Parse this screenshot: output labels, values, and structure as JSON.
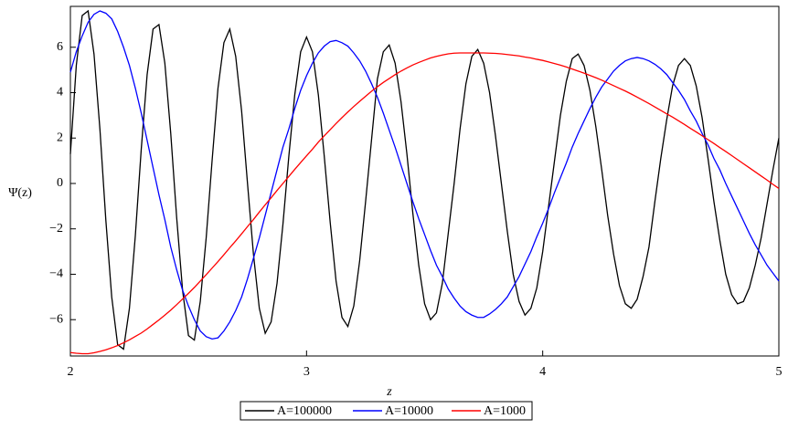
{
  "chart_data": {
    "type": "line",
    "xlabel": "z",
    "ylabel": "Ψ(z)",
    "x": [
      2,
      2.025,
      2.05,
      2.075,
      2.1,
      2.125,
      2.15,
      2.175,
      2.2,
      2.225,
      2.25,
      2.275,
      2.3,
      2.325,
      2.35,
      2.375,
      2.4,
      2.425,
      2.45,
      2.475,
      2.5,
      2.525,
      2.55,
      2.575,
      2.6,
      2.625,
      2.65,
      2.675,
      2.7,
      2.725,
      2.75,
      2.775,
      2.8,
      2.825,
      2.85,
      2.875,
      2.9,
      2.925,
      2.95,
      2.975,
      3,
      3.025,
      3.05,
      3.075,
      3.1,
      3.125,
      3.15,
      3.175,
      3.2,
      3.225,
      3.25,
      3.275,
      3.3,
      3.325,
      3.35,
      3.375,
      3.4,
      3.425,
      3.45,
      3.475,
      3.5,
      3.525,
      3.55,
      3.575,
      3.6,
      3.625,
      3.65,
      3.675,
      3.7,
      3.725,
      3.75,
      3.775,
      3.8,
      3.825,
      3.85,
      3.875,
      3.9,
      3.925,
      3.95,
      3.975,
      4,
      4.025,
      4.05,
      4.075,
      4.1,
      4.125,
      4.15,
      4.175,
      4.2,
      4.225,
      4.25,
      4.275,
      4.3,
      4.325,
      4.35,
      4.375,
      4.4,
      4.425,
      4.45,
      4.475,
      4.5,
      4.525,
      4.55,
      4.575,
      4.6,
      4.625,
      4.65,
      4.675,
      4.7,
      4.725,
      4.75,
      4.775,
      4.8,
      4.825,
      4.85,
      4.875,
      4.9,
      4.925,
      4.95,
      4.975,
      5
    ],
    "series": [
      {
        "name": "A=100000",
        "color": "#000000",
        "values": [
          1.3,
          5.2,
          7.4,
          7.6,
          5.7,
          2.4,
          -1.6,
          -5.0,
          -7.1,
          -7.3,
          -5.5,
          -2.3,
          1.5,
          4.8,
          6.8,
          7.0,
          5.3,
          2.2,
          -1.5,
          -4.7,
          -6.7,
          -6.9,
          -5.2,
          -2.4,
          1.0,
          4.2,
          6.2,
          6.8,
          5.6,
          3.2,
          0,
          -3.1,
          -5.5,
          -6.6,
          -6.1,
          -4.4,
          -1.8,
          1.2,
          3.9,
          5.8,
          6.45,
          5.8,
          3.9,
          1.2,
          -1.7,
          -4.3,
          -5.9,
          -6.3,
          -5.4,
          -3.4,
          -0.8,
          1.9,
          4.6,
          5.8,
          6.1,
          5.3,
          3.6,
          1.3,
          -1.3,
          -3.6,
          -5.3,
          -6.0,
          -5.7,
          -4.4,
          -2.2,
          0,
          2.4,
          4.4,
          5.6,
          5.9,
          5.3,
          4.0,
          2.1,
          0,
          -2.1,
          -4.0,
          -5.2,
          -5.8,
          -5.5,
          -4.6,
          -3.0,
          -1.0,
          1.0,
          3.0,
          4.5,
          5.5,
          5.7,
          5.2,
          4.1,
          2.5,
          0.6,
          -1.4,
          -3.1,
          -4.5,
          -5.3,
          -5.5,
          -5.1,
          -4.1,
          -2.8,
          -0.8,
          1.1,
          2.8,
          4.3,
          5.2,
          5.5,
          5.2,
          4.3,
          2.9,
          1.1,
          -0.8,
          -2.5,
          -4.0,
          -4.9,
          -5.3,
          -5.2,
          -4.6,
          -3.6,
          -2.4,
          -0.9,
          0.6,
          2.0
        ]
      },
      {
        "name": "A=10000",
        "color": "#0000ff",
        "values": [
          4.9,
          5.8,
          6.5,
          7.1,
          7.45,
          7.6,
          7.5,
          7.25,
          6.7,
          6.0,
          5.2,
          4.2,
          3.1,
          1.9,
          0.7,
          -0.5,
          -1.6,
          -2.8,
          -3.8,
          -4.7,
          -5.4,
          -6.0,
          -6.5,
          -6.75,
          -6.85,
          -6.8,
          -6.5,
          -6.1,
          -5.6,
          -5.0,
          -4.2,
          -3.3,
          -2.4,
          -1.4,
          -0.4,
          0.6,
          1.6,
          2.4,
          3.3,
          4.1,
          4.75,
          5.3,
          5.75,
          6.05,
          6.25,
          6.3,
          6.2,
          6.05,
          5.75,
          5.4,
          4.95,
          4.4,
          3.8,
          3.1,
          2.35,
          1.6,
          0.8,
          0,
          -0.8,
          -1.55,
          -2.25,
          -2.95,
          -3.6,
          -4.1,
          -4.65,
          -5.05,
          -5.4,
          -5.65,
          -5.8,
          -5.9,
          -5.9,
          -5.75,
          -5.55,
          -5.3,
          -5.0,
          -4.55,
          -4.1,
          -3.55,
          -3.0,
          -2.35,
          -1.75,
          -1.1,
          -0.4,
          0.25,
          0.9,
          1.6,
          2.2,
          2.75,
          3.3,
          3.8,
          4.25,
          4.6,
          4.95,
          5.2,
          5.4,
          5.5,
          5.55,
          5.5,
          5.4,
          5.25,
          5.05,
          4.8,
          4.45,
          4.1,
          3.7,
          3.2,
          2.75,
          2.2,
          1.7,
          1.1,
          0.6,
          0,
          -0.55,
          -1.1,
          -1.65,
          -2.2,
          -2.7,
          -3.15,
          -3.6,
          -3.95,
          -4.3
        ]
      },
      {
        "name": "A=1000",
        "color": "#ff0000",
        "values": [
          -7.45,
          -7.48,
          -7.5,
          -7.5,
          -7.46,
          -7.4,
          -7.33,
          -7.24,
          -7.14,
          -7.02,
          -6.89,
          -6.74,
          -6.59,
          -6.41,
          -6.21,
          -6.01,
          -5.8,
          -5.58,
          -5.34,
          -5.09,
          -4.84,
          -4.58,
          -4.3,
          -4.02,
          -3.73,
          -3.44,
          -3.14,
          -2.83,
          -2.53,
          -2.22,
          -1.9,
          -1.59,
          -1.26,
          -0.94,
          -0.63,
          -0.31,
          0,
          0.31,
          0.62,
          0.92,
          1.22,
          1.51,
          1.82,
          2.1,
          2.37,
          2.64,
          2.9,
          3.15,
          3.39,
          3.62,
          3.84,
          4.06,
          4.26,
          4.45,
          4.62,
          4.79,
          4.95,
          5.09,
          5.22,
          5.33,
          5.43,
          5.53,
          5.6,
          5.66,
          5.71,
          5.74,
          5.75,
          5.75,
          5.75,
          5.75,
          5.75,
          5.74,
          5.73,
          5.71,
          5.68,
          5.65,
          5.62,
          5.57,
          5.53,
          5.47,
          5.42,
          5.35,
          5.28,
          5.21,
          5.13,
          5.04,
          4.95,
          4.86,
          4.76,
          4.66,
          4.55,
          4.43,
          4.31,
          4.19,
          4.07,
          3.94,
          3.8,
          3.66,
          3.52,
          3.37,
          3.22,
          3.07,
          2.92,
          2.76,
          2.6,
          2.43,
          2.27,
          2.1,
          1.93,
          1.76,
          1.58,
          1.41,
          1.23,
          1.05,
          0.87,
          0.69,
          0.51,
          0.33,
          0.15,
          -0.04,
          -0.22
        ]
      }
    ],
    "xlim": [
      2,
      5
    ],
    "xticks": [
      2,
      3,
      4,
      5
    ],
    "ylim": [
      -7.6,
      7.8
    ],
    "yticks": [
      {
        "value": -6,
        "label": "−6"
      },
      {
        "value": -4,
        "label": "−4"
      },
      {
        "value": -2,
        "label": "−2"
      },
      0,
      2,
      4,
      6
    ]
  }
}
